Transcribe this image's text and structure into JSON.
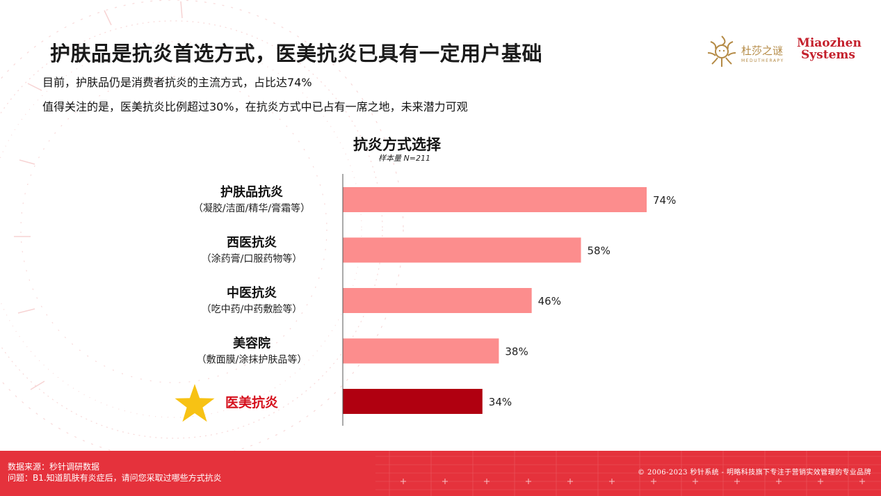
{
  "header": {
    "title": "护肤品是抗炎首选方式，医美抗炎已具有一定用户基础",
    "subtitle_1": "目前，护肤品仍是消费者抗炎的主流方式，占比达74%",
    "subtitle_2": "值得关注的是，医美抗炎比例超过30%，在抗炎方式中已占有一席之地，未来潜力可观"
  },
  "logos": {
    "dushazhimi_cn": "杜莎之谜",
    "dushazhimi_en": "MEDUTHERAPY",
    "miaozhen_line1": "Miaozhen",
    "miaozhen_line2": "Systems"
  },
  "chart_data": {
    "type": "bar",
    "orientation": "horizontal",
    "title": "抗炎方式选择",
    "subtitle": "样本量 N=211",
    "categories": [
      "护肤品抗炎",
      "西医抗炎",
      "中医抗炎",
      "美容院",
      "医美抗炎"
    ],
    "category_notes": [
      "（凝胶/洁面/精华/膏霜等）",
      "（涂药膏/口服药物等）",
      "（吃中药/中药敷脸等）",
      "（敷面膜/涂抹护肤品等）",
      ""
    ],
    "values": [
      74,
      58,
      46,
      38,
      34
    ],
    "value_labels": [
      "74%",
      "58%",
      "46%",
      "38%",
      "34%"
    ],
    "unit": "%",
    "xlim": [
      0,
      100
    ],
    "highlight_index": 4,
    "colors": {
      "default_bar": "#fc8d8d",
      "highlight_bar": "#b00010",
      "highlight_label": "#d5101c",
      "star": "#f7c214",
      "axis": "#555555"
    }
  },
  "footer": {
    "source": "数据来源：秒针调研数据",
    "question": "问题：B1.知道肌肤有炎症后，请问您采取过哪些方式抗炎",
    "copyright": "© 2006-2023 秒针系统 - 明略科技旗下专注于营销实效管理的专业品牌"
  }
}
